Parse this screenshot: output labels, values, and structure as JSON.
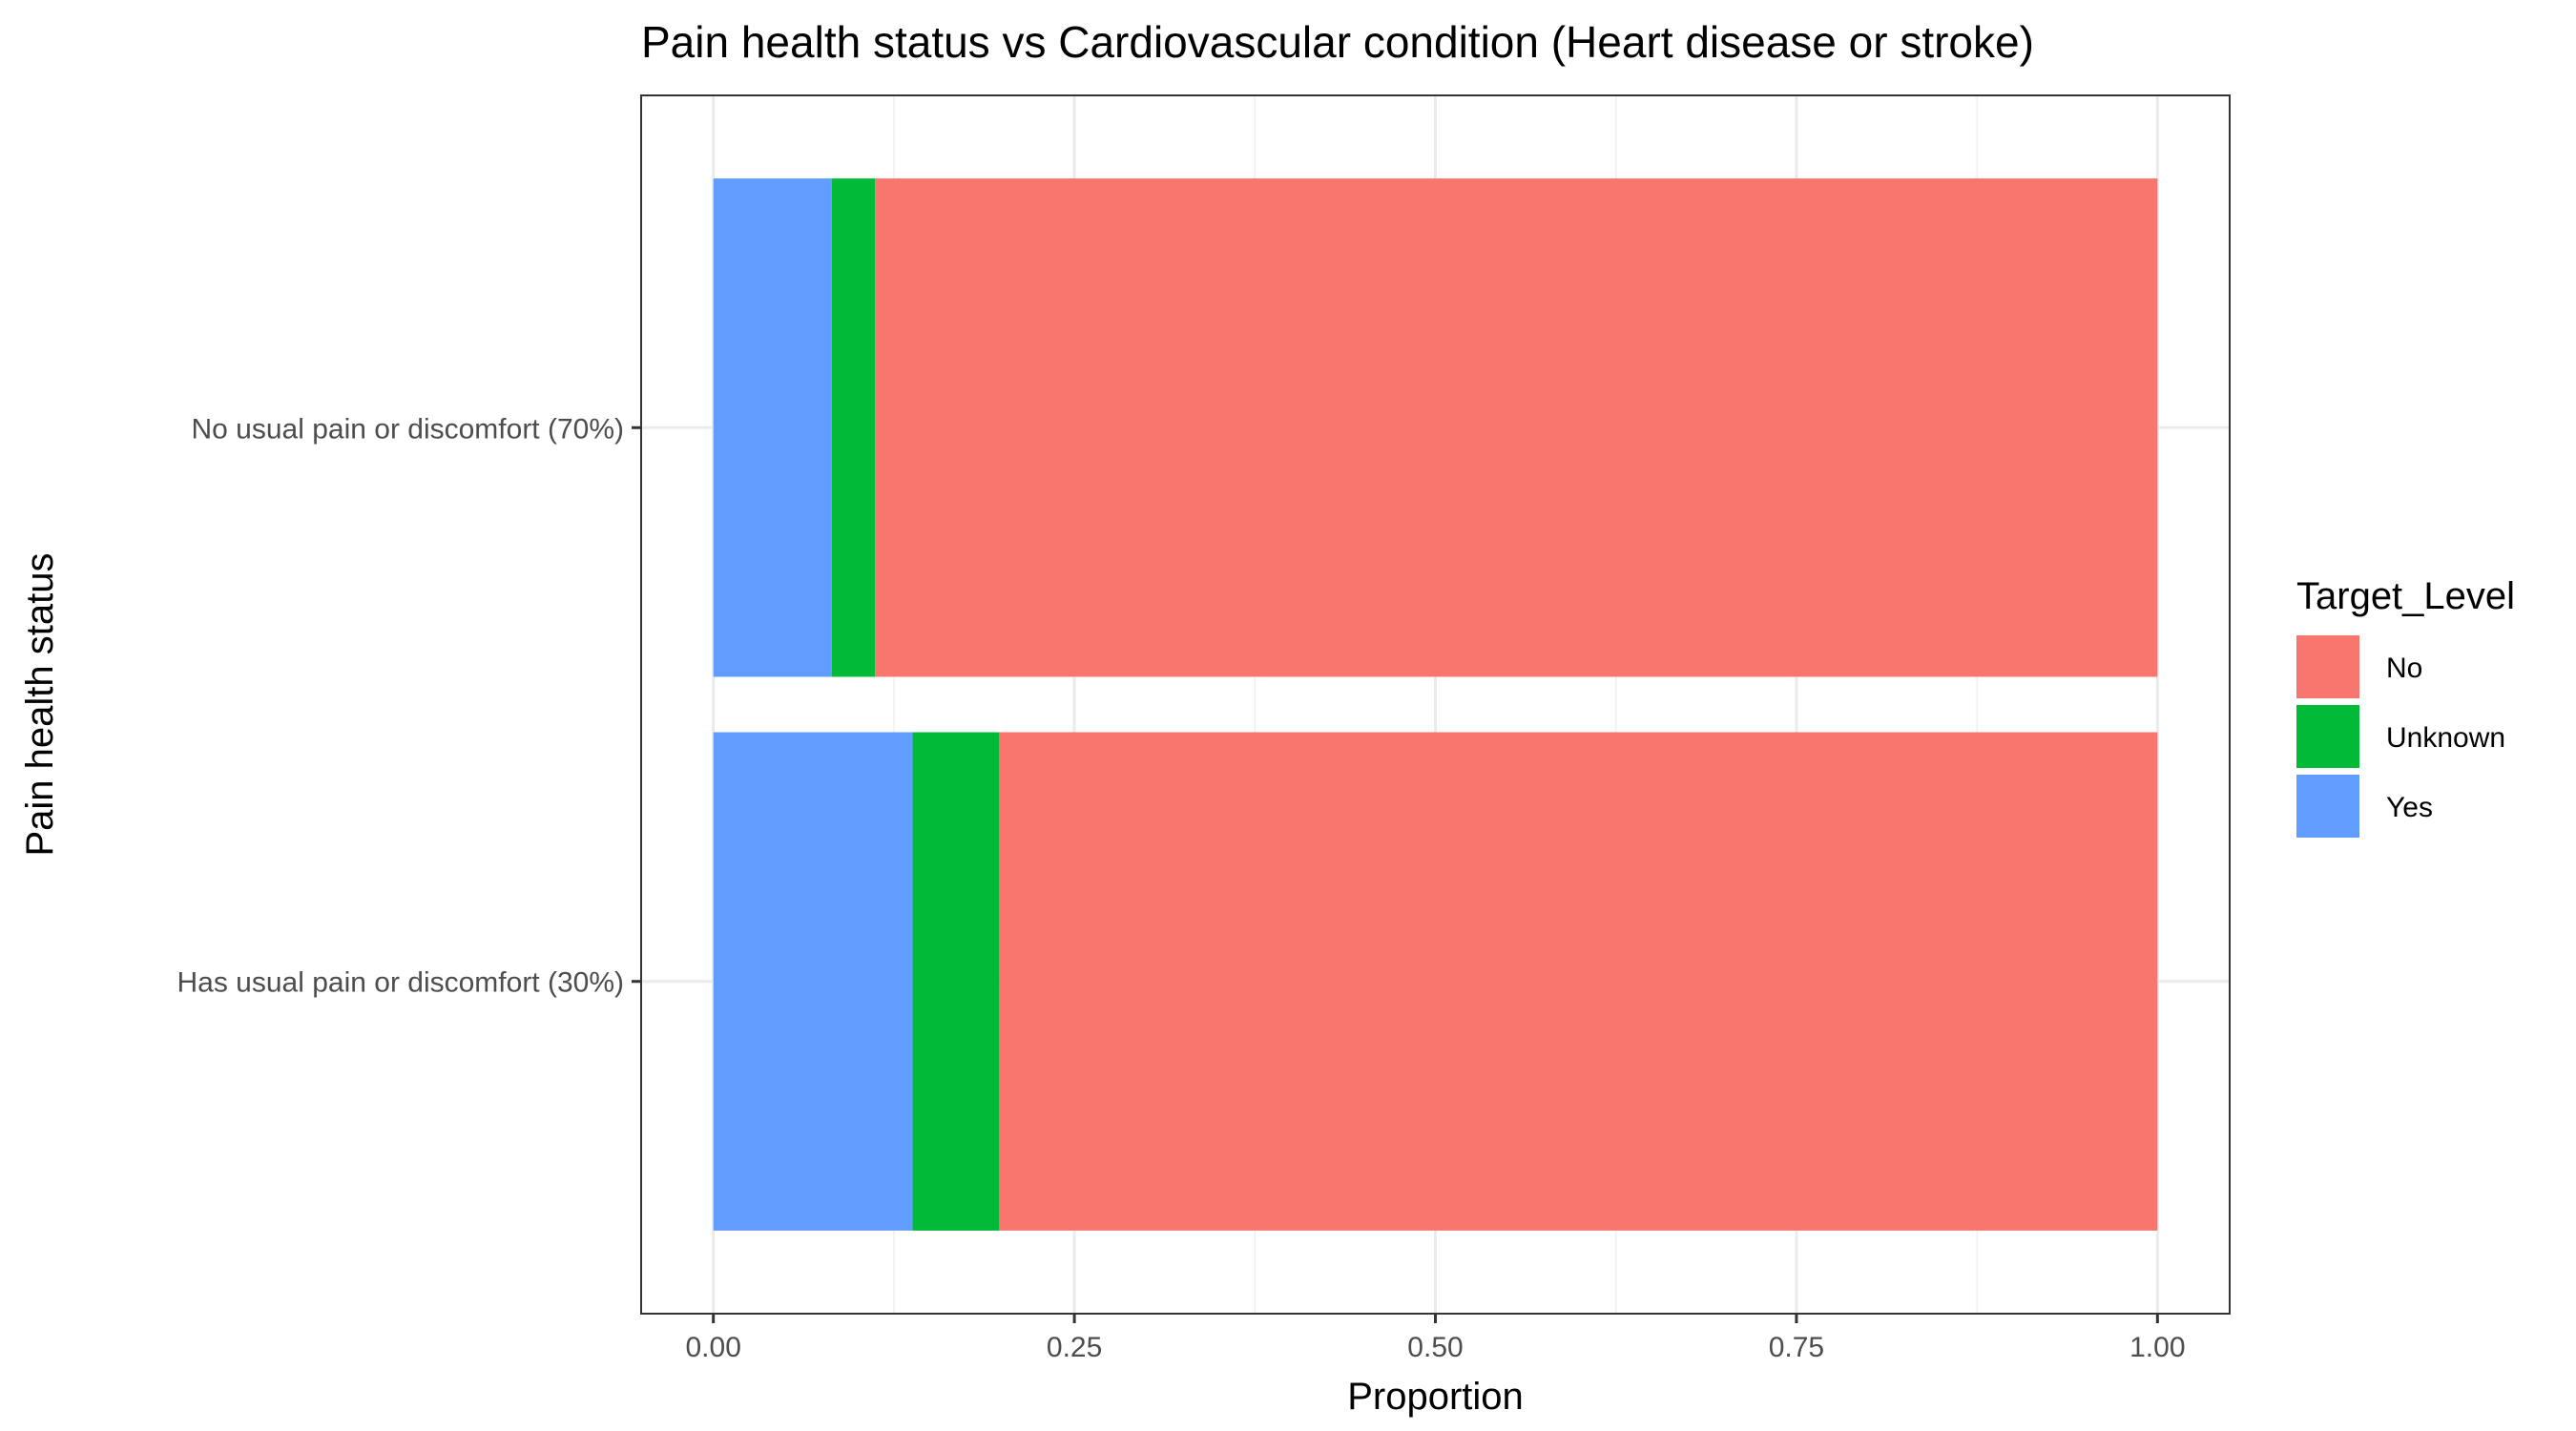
{
  "chart_data": {
    "type": "bar",
    "orientation": "horizontal",
    "stacked": true,
    "title": "Pain health status vs Cardiovascular condition (Heart disease or stroke)",
    "xlabel": "Proportion",
    "ylabel": "Pain health status",
    "xlim": [
      -0.05,
      1.05
    ],
    "x_ticks": [
      "0.00",
      "0.25",
      "0.50",
      "0.75",
      "1.00"
    ],
    "categories": [
      "No usual pain or discomfort (70%)",
      "Has usual pain or discomfort (30%)"
    ],
    "series": [
      {
        "name": "Yes",
        "color": "#619CFF",
        "values": [
          0.082,
          0.138
        ]
      },
      {
        "name": "Unknown",
        "color": "#00BA38",
        "values": [
          0.03,
          0.06
        ]
      },
      {
        "name": "No",
        "color": "#F8766D",
        "values": [
          0.888,
          0.802
        ]
      }
    ],
    "grid": true,
    "legend": {
      "title": "Target_Level",
      "placement": "right",
      "entries": [
        {
          "label": "No",
          "color": "#F8766D"
        },
        {
          "label": "Unknown",
          "color": "#00BA38"
        },
        {
          "label": "Yes",
          "color": "#619CFF"
        }
      ]
    }
  }
}
